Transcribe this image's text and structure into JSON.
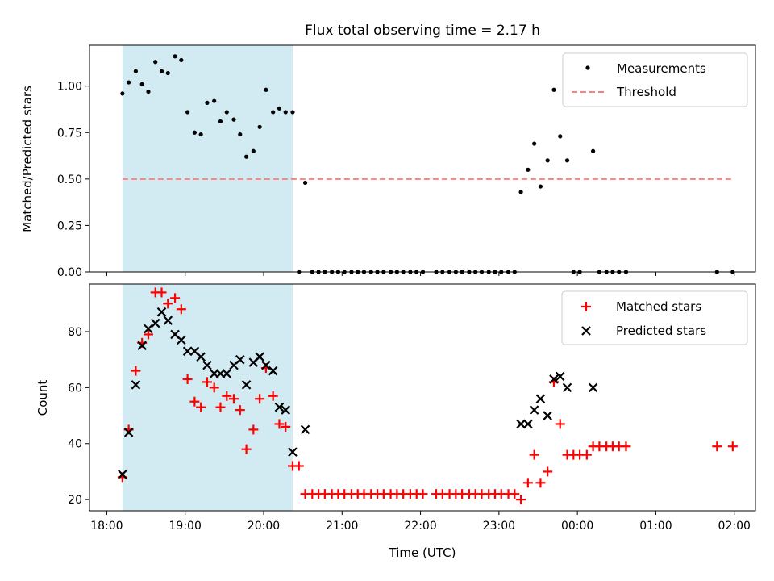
{
  "figure": {
    "title": "Flux total observing time = 2.17 h",
    "xlabel": "Time (UTC)",
    "xticks": [
      {
        "value": 18.0,
        "label": "18:00"
      },
      {
        "value": 19.0,
        "label": "19:00"
      },
      {
        "value": 20.0,
        "label": "20:00"
      },
      {
        "value": 21.0,
        "label": "21:00"
      },
      {
        "value": 22.0,
        "label": "22:00"
      },
      {
        "value": 23.0,
        "label": "23:00"
      },
      {
        "value": 24.0,
        "label": "00:00"
      },
      {
        "value": 25.0,
        "label": "01:00"
      },
      {
        "value": 26.0,
        "label": "02:00"
      }
    ],
    "xlim": [
      17.78,
      26.27
    ],
    "shaded_span": [
      18.2,
      20.37
    ],
    "shade_color": "#add8e6"
  },
  "chart_data": [
    {
      "type": "scatter",
      "ylabel": "Matched/Predicted stars",
      "ylim": [
        0,
        1.22
      ],
      "yticks": [
        {
          "value": 0.0,
          "label": "0.00"
        },
        {
          "value": 0.25,
          "label": "0.25"
        },
        {
          "value": 0.5,
          "label": "0.50"
        },
        {
          "value": 0.75,
          "label": "0.75"
        },
        {
          "value": 1.0,
          "label": "1.00"
        }
      ],
      "legend": {
        "position": "top-right",
        "entries": [
          "Measurements",
          "Threshold"
        ]
      },
      "threshold": {
        "name": "Threshold",
        "value": 0.5,
        "x_range": [
          18.2,
          25.97
        ],
        "color": "#ff7f7f"
      },
      "series": [
        {
          "name": "Measurements",
          "marker": "dot",
          "color": "#000000",
          "points": [
            [
              18.2,
              0.96
            ],
            [
              18.28,
              1.02
            ],
            [
              18.37,
              1.08
            ],
            [
              18.45,
              1.01
            ],
            [
              18.53,
              0.97
            ],
            [
              18.62,
              1.13
            ],
            [
              18.7,
              1.08
            ],
            [
              18.78,
              1.07
            ],
            [
              18.87,
              1.16
            ],
            [
              18.95,
              1.14
            ],
            [
              19.03,
              0.86
            ],
            [
              19.12,
              0.75
            ],
            [
              19.2,
              0.74
            ],
            [
              19.28,
              0.91
            ],
            [
              19.37,
              0.92
            ],
            [
              19.45,
              0.81
            ],
            [
              19.53,
              0.86
            ],
            [
              19.62,
              0.82
            ],
            [
              19.7,
              0.74
            ],
            [
              19.78,
              0.62
            ],
            [
              19.87,
              0.65
            ],
            [
              19.95,
              0.78
            ],
            [
              20.03,
              0.98
            ],
            [
              20.12,
              0.86
            ],
            [
              20.2,
              0.88
            ],
            [
              20.28,
              0.86
            ],
            [
              20.37,
              0.86
            ],
            [
              20.45,
              0.0
            ],
            [
              20.53,
              0.48
            ],
            [
              20.62,
              0.0
            ],
            [
              20.7,
              0.0
            ],
            [
              20.78,
              0.0
            ],
            [
              20.87,
              0.0
            ],
            [
              20.95,
              0.0
            ],
            [
              21.03,
              0.0
            ],
            [
              21.12,
              0.0
            ],
            [
              21.2,
              0.0
            ],
            [
              21.28,
              0.0
            ],
            [
              21.37,
              0.0
            ],
            [
              21.45,
              0.0
            ],
            [
              21.53,
              0.0
            ],
            [
              21.62,
              0.0
            ],
            [
              21.7,
              0.0
            ],
            [
              21.78,
              0.0
            ],
            [
              21.87,
              0.0
            ],
            [
              21.95,
              0.0
            ],
            [
              22.03,
              0.0
            ],
            [
              22.2,
              0.0
            ],
            [
              22.28,
              0.0
            ],
            [
              22.37,
              0.0
            ],
            [
              22.45,
              0.0
            ],
            [
              22.53,
              0.0
            ],
            [
              22.62,
              0.0
            ],
            [
              22.7,
              0.0
            ],
            [
              22.78,
              0.0
            ],
            [
              22.87,
              0.0
            ],
            [
              22.95,
              0.0
            ],
            [
              23.03,
              0.0
            ],
            [
              23.12,
              0.0
            ],
            [
              23.2,
              0.0
            ],
            [
              23.28,
              0.43
            ],
            [
              23.37,
              0.55
            ],
            [
              23.45,
              0.69
            ],
            [
              23.53,
              0.46
            ],
            [
              23.62,
              0.6
            ],
            [
              23.7,
              0.98
            ],
            [
              23.78,
              0.73
            ],
            [
              23.87,
              0.6
            ],
            [
              23.95,
              0.0
            ],
            [
              24.03,
              0.0
            ],
            [
              24.2,
              0.65
            ],
            [
              24.28,
              0.0
            ],
            [
              24.37,
              0.0
            ],
            [
              24.45,
              0.0
            ],
            [
              24.53,
              0.0
            ],
            [
              24.62,
              0.0
            ],
            [
              25.78,
              0.0
            ],
            [
              25.98,
              0.0
            ]
          ]
        }
      ]
    },
    {
      "type": "scatter",
      "ylabel": "Count",
      "ylim": [
        16,
        97
      ],
      "yticks": [
        {
          "value": 20,
          "label": "20"
        },
        {
          "value": 40,
          "label": "40"
        },
        {
          "value": 60,
          "label": "60"
        },
        {
          "value": 80,
          "label": "80"
        }
      ],
      "legend": {
        "position": "top-right",
        "entries": [
          "Matched stars",
          "Predicted stars"
        ]
      },
      "series": [
        {
          "name": "Matched stars",
          "marker": "plus",
          "color": "#ff0000",
          "points": [
            [
              18.2,
              28
            ],
            [
              18.28,
              45
            ],
            [
              18.37,
              66
            ],
            [
              18.45,
              76
            ],
            [
              18.53,
              79
            ],
            [
              18.62,
              94
            ],
            [
              18.7,
              94
            ],
            [
              18.78,
              90
            ],
            [
              18.87,
              92
            ],
            [
              18.95,
              88
            ],
            [
              19.03,
              63
            ],
            [
              19.12,
              55
            ],
            [
              19.2,
              53
            ],
            [
              19.28,
              62
            ],
            [
              19.37,
              60
            ],
            [
              19.45,
              53
            ],
            [
              19.53,
              57
            ],
            [
              19.62,
              56
            ],
            [
              19.7,
              52
            ],
            [
              19.78,
              38
            ],
            [
              19.87,
              45
            ],
            [
              19.95,
              56
            ],
            [
              20.03,
              67
            ],
            [
              20.12,
              57
            ],
            [
              20.2,
              47
            ],
            [
              20.28,
              46
            ],
            [
              20.37,
              32
            ],
            [
              20.45,
              32
            ],
            [
              20.53,
              22
            ],
            [
              20.62,
              22
            ],
            [
              20.7,
              22
            ],
            [
              20.78,
              22
            ],
            [
              20.87,
              22
            ],
            [
              20.95,
              22
            ],
            [
              21.03,
              22
            ],
            [
              21.12,
              22
            ],
            [
              21.2,
              22
            ],
            [
              21.28,
              22
            ],
            [
              21.37,
              22
            ],
            [
              21.45,
              22
            ],
            [
              21.53,
              22
            ],
            [
              21.62,
              22
            ],
            [
              21.7,
              22
            ],
            [
              21.78,
              22
            ],
            [
              21.87,
              22
            ],
            [
              21.95,
              22
            ],
            [
              22.03,
              22
            ],
            [
              22.2,
              22
            ],
            [
              22.28,
              22
            ],
            [
              22.37,
              22
            ],
            [
              22.45,
              22
            ],
            [
              22.53,
              22
            ],
            [
              22.62,
              22
            ],
            [
              22.7,
              22
            ],
            [
              22.78,
              22
            ],
            [
              22.87,
              22
            ],
            [
              22.95,
              22
            ],
            [
              23.03,
              22
            ],
            [
              23.12,
              22
            ],
            [
              23.2,
              22
            ],
            [
              23.28,
              20
            ],
            [
              23.37,
              26
            ],
            [
              23.45,
              36
            ],
            [
              23.53,
              26
            ],
            [
              23.62,
              30
            ],
            [
              23.7,
              62
            ],
            [
              23.78,
              47
            ],
            [
              23.87,
              36
            ],
            [
              23.95,
              36
            ],
            [
              24.03,
              36
            ],
            [
              24.12,
              36
            ],
            [
              24.2,
              39
            ],
            [
              24.28,
              39
            ],
            [
              24.37,
              39
            ],
            [
              24.45,
              39
            ],
            [
              24.53,
              39
            ],
            [
              24.62,
              39
            ],
            [
              25.78,
              39
            ],
            [
              25.98,
              39
            ]
          ]
        },
        {
          "name": "Predicted stars",
          "marker": "x",
          "color": "#000000",
          "points": [
            [
              18.2,
              29
            ],
            [
              18.28,
              44
            ],
            [
              18.37,
              61
            ],
            [
              18.45,
              75
            ],
            [
              18.53,
              81
            ],
            [
              18.62,
              83
            ],
            [
              18.7,
              87
            ],
            [
              18.78,
              84
            ],
            [
              18.87,
              79
            ],
            [
              18.95,
              77
            ],
            [
              19.03,
              73
            ],
            [
              19.12,
              73
            ],
            [
              19.2,
              71
            ],
            [
              19.28,
              68
            ],
            [
              19.37,
              65
            ],
            [
              19.45,
              65
            ],
            [
              19.53,
              65
            ],
            [
              19.62,
              68
            ],
            [
              19.7,
              70
            ],
            [
              19.78,
              61
            ],
            [
              19.87,
              69
            ],
            [
              19.95,
              71
            ],
            [
              20.03,
              68
            ],
            [
              20.12,
              66
            ],
            [
              20.2,
              53
            ],
            [
              20.28,
              52
            ],
            [
              20.37,
              37
            ],
            [
              20.53,
              45
            ],
            [
              23.28,
              47
            ],
            [
              23.37,
              47
            ],
            [
              23.45,
              52
            ],
            [
              23.53,
              56
            ],
            [
              23.62,
              50
            ],
            [
              23.7,
              63
            ],
            [
              23.78,
              64
            ],
            [
              23.87,
              60
            ],
            [
              24.2,
              60
            ]
          ]
        }
      ]
    }
  ]
}
